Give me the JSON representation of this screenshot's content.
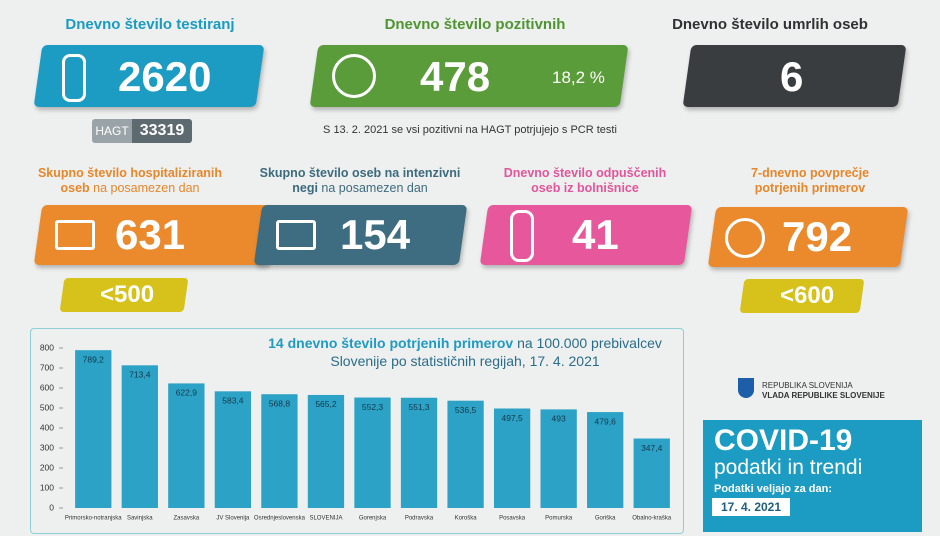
{
  "testing": {
    "title": "Dnevno število testiranj",
    "value": 2620,
    "hagt_label": "HAGT",
    "hagt_value": 33319
  },
  "positive": {
    "title": "Dnevno število pozitivnih",
    "value": 478,
    "share": "18,2 %",
    "note": "S 13. 2. 2021 se vsi pozitivni na HAGT potrjujejo s PCR testi"
  },
  "deaths": {
    "title": "Dnevno število umrlih oseb",
    "value": 6
  },
  "hospitalized": {
    "title_bold": "Skupno število hospitaliziranih oseb",
    "title_rest": "na posamezen dan",
    "value": 631,
    "threshold": "<500"
  },
  "icu": {
    "title_bold": "Skupno število oseb na intenzivni negi",
    "title_rest": "na posamezen dan",
    "value": 154
  },
  "discharged": {
    "title": "Dnevno število odpuščenih oseb iz bolnišnice",
    "value": 41
  },
  "avg7": {
    "title": "7-dnevno povprečje potrjenih primerov",
    "value": 792,
    "threshold": "<600"
  },
  "chart_data": {
    "type": "bar",
    "title_bold": "14 dnevno število potrjenih primerov",
    "title_rest": "na 100.000 prebivalcev Slovenije po statističnih regijah, 17. 4. 2021",
    "categories": [
      "Primorsko-notranjska",
      "Savinjska",
      "Zasavska",
      "JV Slovenija",
      "Osrednjeslovenska",
      "SLOVENIJA",
      "Gorenjska",
      "Podravska",
      "Koroška",
      "Posavska",
      "Pomurska",
      "Goriška",
      "Obalno-kraška"
    ],
    "values": [
      789.2,
      713.4,
      622.9,
      583.4,
      568.8,
      565.2,
      552.3,
      551.3,
      536.5,
      497.5,
      493,
      479.6,
      347.4
    ],
    "value_labels": [
      "789,2",
      "713,4",
      "622,9",
      "583,4",
      "568,8",
      "565,2",
      "552,3",
      "551,3",
      "536,5",
      "497,5",
      "493",
      "479,6",
      "347,4"
    ],
    "color": "#2ba2c6",
    "ylim": [
      0,
      800
    ],
    "yticks": [
      0,
      100,
      200,
      300,
      400,
      500,
      600,
      700,
      800
    ]
  },
  "footer": {
    "gov_line1": "REPUBLIKA SLOVENIJA",
    "gov_line2": "VLADA REPUBLIKE SLOVENIJE",
    "covid_title": "COVID-19",
    "covid_subtitle": "podatki in trendi",
    "valid_label": "Podatki veljajo za dan:",
    "valid_date": "17. 4. 2021"
  }
}
